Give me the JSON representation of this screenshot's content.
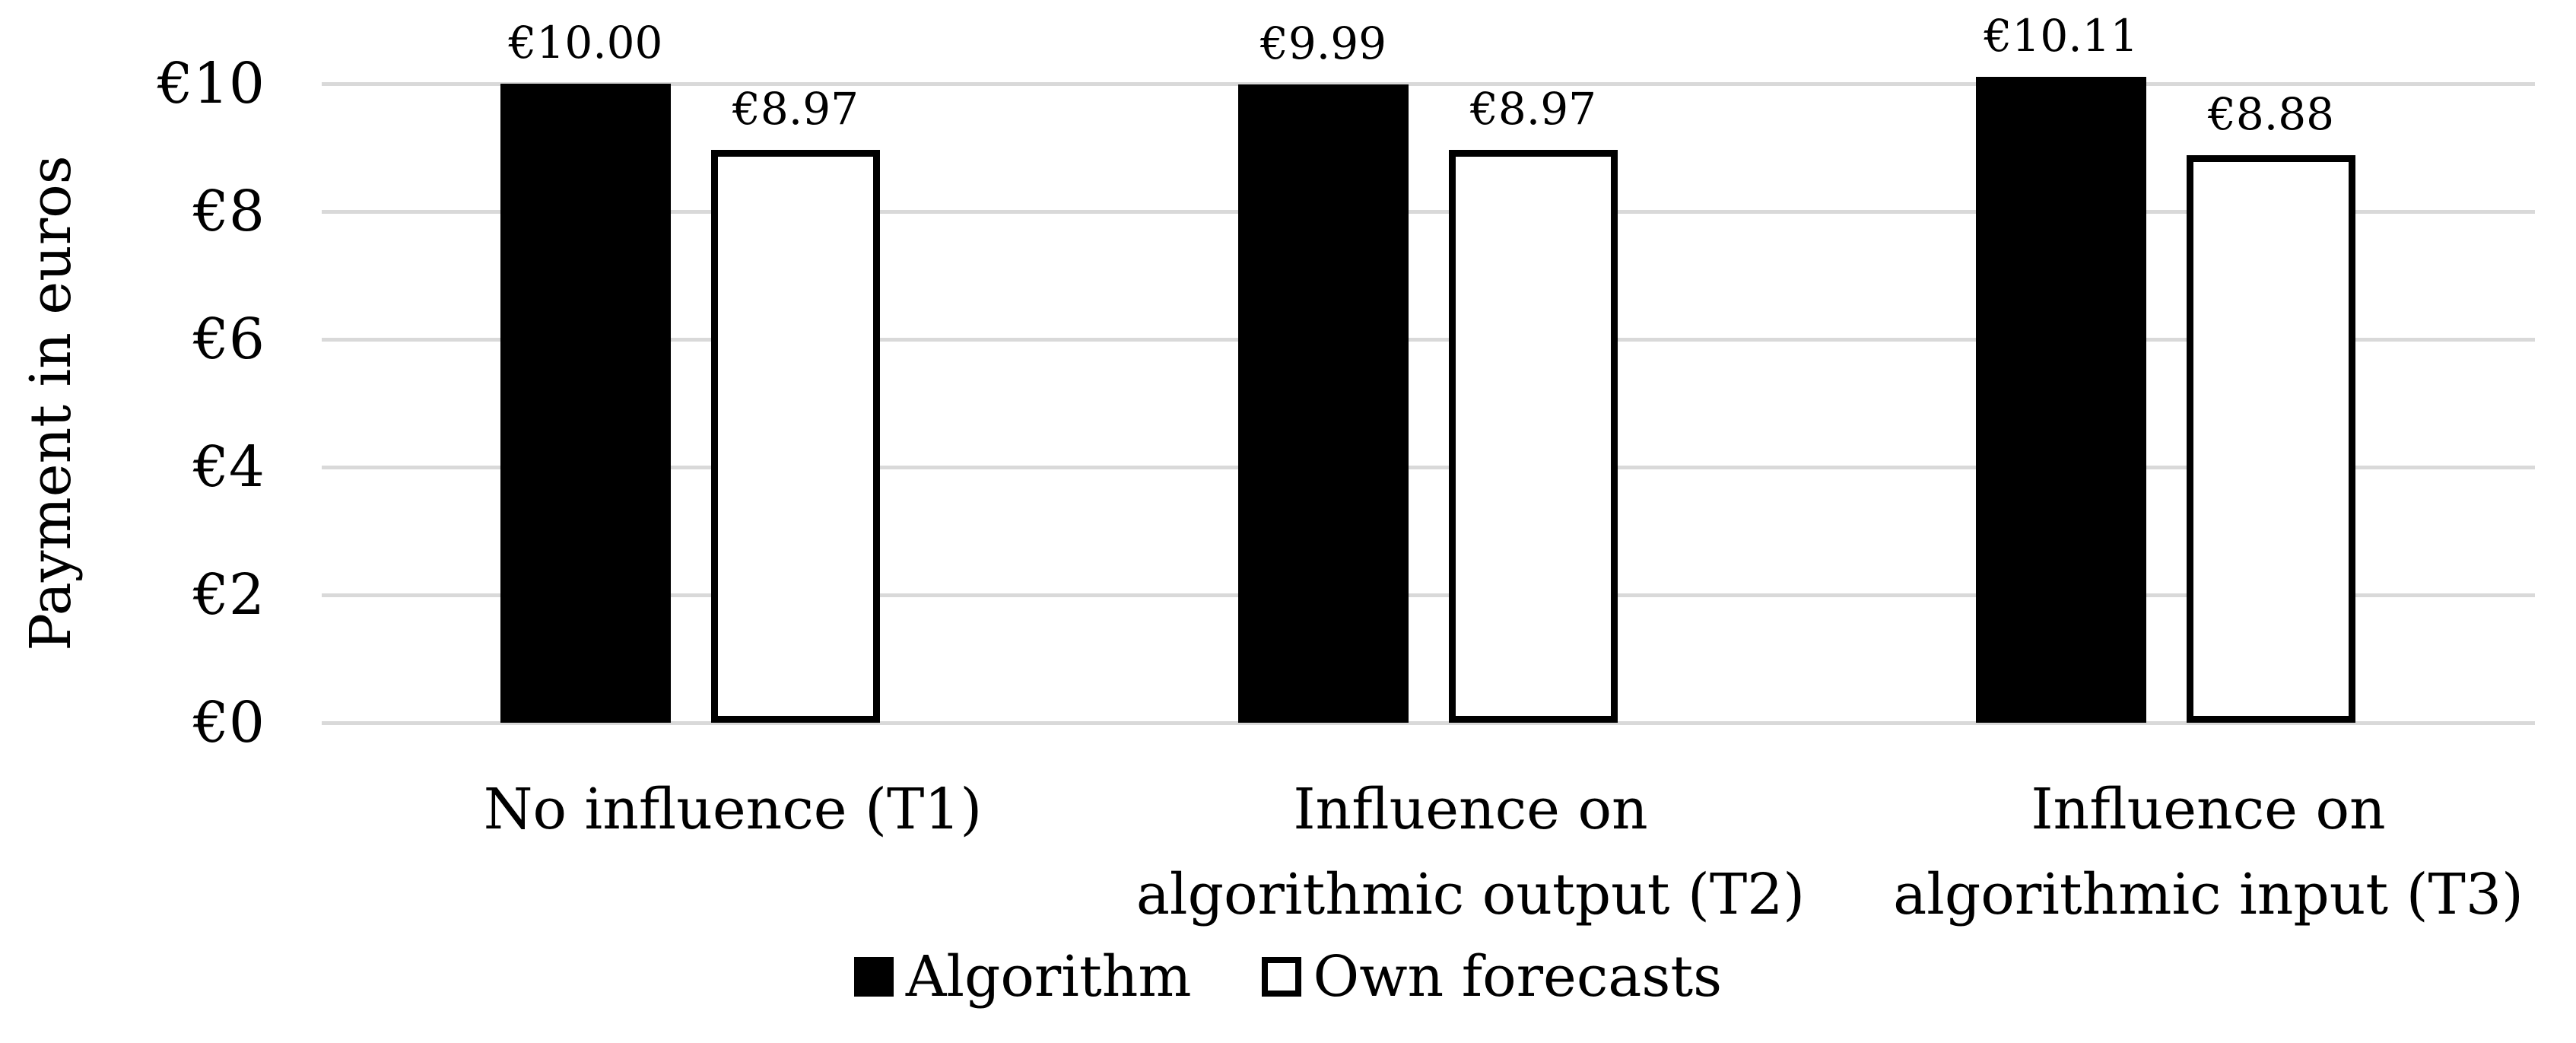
{
  "chart_data": {
    "type": "bar",
    "title": "",
    "xlabel": "",
    "ylabel": "Payment in euros",
    "categories": [
      "No influence (T1)",
      "Influence on\nalgorithmic output (T2)",
      "Influence on\nalgorithmic input (T3)"
    ],
    "series": [
      {
        "name": "Algorithm",
        "values": [
          10.0,
          9.99,
          10.11
        ],
        "data_labels": [
          "€10.00",
          "€9.99",
          "€10.11"
        ],
        "fill": "#000000",
        "border": "#000000"
      },
      {
        "name": "Own forecasts",
        "values": [
          8.97,
          8.97,
          8.88
        ],
        "data_labels": [
          "€8.97",
          "€8.97",
          "€8.88"
        ],
        "fill": "#ffffff",
        "border": "#000000"
      }
    ],
    "y_ticks": [
      {
        "label": "€10",
        "value": 10
      },
      {
        "label": "€8",
        "value": 8
      },
      {
        "label": "€6",
        "value": 6
      },
      {
        "label": "€4",
        "value": 4
      },
      {
        "label": "€2",
        "value": 2
      },
      {
        "label": "€0",
        "value": 0
      }
    ],
    "ylim": [
      0,
      10
    ],
    "grid": "horizontal",
    "grid_color": "#d9d9d9",
    "background_color": "#ffffff",
    "legend_position": "bottom"
  }
}
